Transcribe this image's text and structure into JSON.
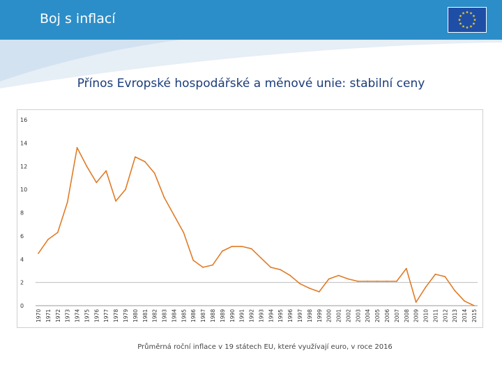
{
  "header": {
    "title": "Boj s inflací"
  },
  "flag": {
    "icon": "eu-flag-icon",
    "background": "#1f4ea6",
    "star_color": "#f5d21e"
  },
  "slide": {
    "subtitle": "Přínos Evropské hospodářské a měnové unie: stabilní ceny",
    "caption": "Průměrná roční inflace v 19 státech EU, které využívají euro, v roce 2016"
  },
  "colors": {
    "header": "#2c8ec8",
    "line": "#e07b26",
    "grid": "#bdbdbd"
  },
  "chart_data": {
    "type": "line",
    "x": [
      1970,
      1971,
      1972,
      1973,
      1974,
      1975,
      1976,
      1977,
      1978,
      1979,
      1980,
      1981,
      1982,
      1983,
      1984,
      1985,
      1986,
      1987,
      1988,
      1989,
      1990,
      1991,
      1992,
      1993,
      1994,
      1995,
      1996,
      1997,
      1998,
      1999,
      2000,
      2001,
      2002,
      2003,
      2004,
      2005,
      2006,
      2007,
      2008,
      2009,
      2010,
      2011,
      2012,
      2013,
      2014,
      2015
    ],
    "values": [
      4.5,
      5.7,
      6.3,
      8.9,
      13.6,
      12.0,
      10.6,
      11.6,
      9.0,
      10.0,
      12.8,
      12.4,
      11.4,
      9.3,
      7.8,
      6.3,
      3.9,
      3.3,
      3.5,
      4.7,
      5.1,
      5.1,
      4.9,
      4.1,
      3.3,
      3.1,
      2.6,
      1.9,
      1.5,
      1.2,
      2.3,
      2.6,
      2.3,
      2.1,
      2.1,
      2.1,
      2.1,
      2.1,
      3.2,
      0.3,
      1.6,
      2.7,
      2.5,
      1.3,
      0.4,
      0.0
    ],
    "ylim": [
      0,
      16
    ],
    "yticks": [
      0,
      2,
      4,
      6,
      8,
      10,
      12,
      14,
      16
    ],
    "grid": "horizontal at 2",
    "legend": "none",
    "title": "",
    "xlabel": "",
    "ylabel": ""
  }
}
